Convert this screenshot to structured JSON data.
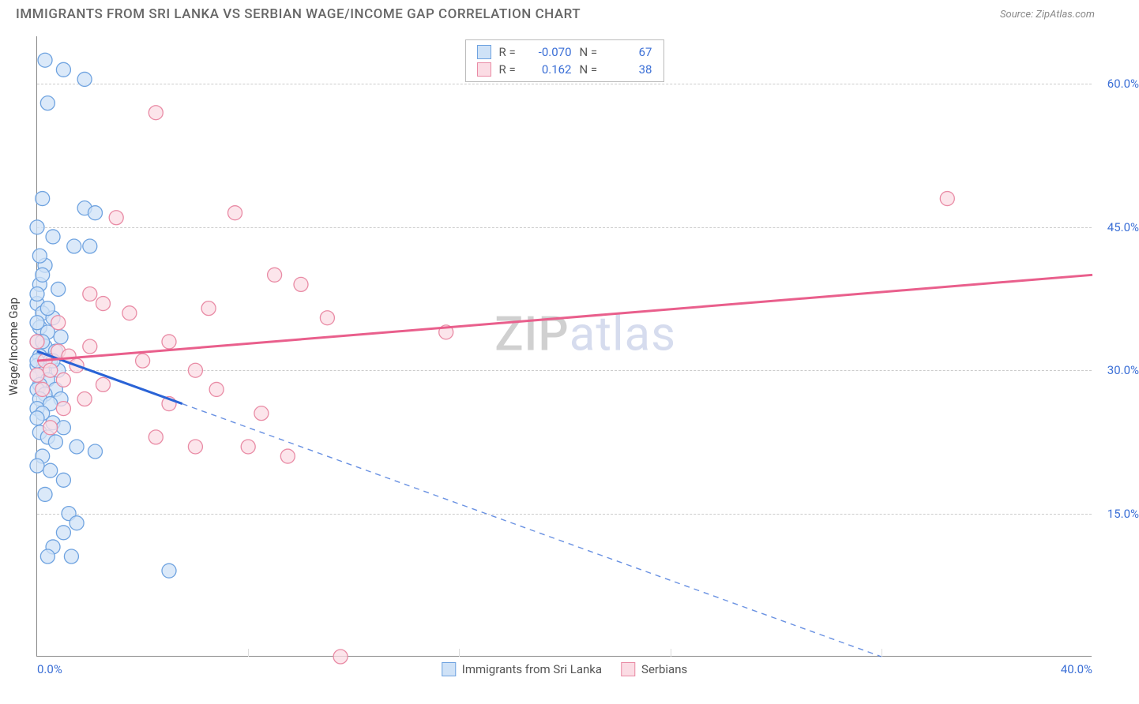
{
  "header": {
    "title": "IMMIGRANTS FROM SRI LANKA VS SERBIAN WAGE/INCOME GAP CORRELATION CHART",
    "source_label": "Source: ZipAtlas.com"
  },
  "watermark": {
    "part1": "ZIP",
    "part2": "atlas"
  },
  "chart": {
    "type": "scatter",
    "background_color": "#ffffff",
    "grid_color": "#cccccc",
    "axis_color": "#888888",
    "x_axis": {
      "min": 0.0,
      "max": 40.0,
      "ticks": [
        0.0,
        40.0
      ],
      "tick_labels": [
        "0.0%",
        "40.0%"
      ],
      "minor_ticks": [
        8.0,
        16.0,
        24.0,
        32.0
      ]
    },
    "y_axis": {
      "title": "Wage/Income Gap",
      "min": 0.0,
      "max": 65.0,
      "ticks": [
        15.0,
        30.0,
        45.0,
        60.0
      ],
      "tick_labels": [
        "15.0%",
        "30.0%",
        "45.0%",
        "60.0%"
      ]
    },
    "tick_label_color": "#3b6fd6",
    "tick_label_fontsize": 15,
    "series": [
      {
        "name": "Immigrants from Sri Lanka",
        "marker_fill": "#cfe2f7",
        "marker_stroke": "#6fa3e0",
        "marker_radius": 9,
        "line_color": "#2a63d6",
        "R": "-0.070",
        "N": "67",
        "regression": {
          "x1": 0.0,
          "y1": 32.0,
          "x2_solid": 5.5,
          "y2_solid": 26.5,
          "x2_dash": 32.0,
          "y2_dash": 0.0
        },
        "points": [
          [
            0.3,
            62.5
          ],
          [
            1.0,
            61.5
          ],
          [
            1.8,
            60.5
          ],
          [
            0.4,
            58.0
          ],
          [
            0.2,
            48.0
          ],
          [
            1.8,
            47.0
          ],
          [
            2.2,
            46.5
          ],
          [
            0.6,
            44.0
          ],
          [
            1.4,
            43.0
          ],
          [
            2.0,
            43.0
          ],
          [
            0.3,
            41.0
          ],
          [
            0.1,
            39.0
          ],
          [
            0.8,
            38.5
          ],
          [
            0.0,
            37.0
          ],
          [
            0.2,
            36.0
          ],
          [
            0.6,
            35.5
          ],
          [
            0.1,
            34.5
          ],
          [
            0.4,
            34.0
          ],
          [
            0.9,
            33.5
          ],
          [
            0.0,
            33.0
          ],
          [
            0.3,
            32.5
          ],
          [
            0.7,
            32.0
          ],
          [
            0.1,
            31.5
          ],
          [
            0.5,
            31.0
          ],
          [
            0.0,
            30.5
          ],
          [
            0.2,
            30.0
          ],
          [
            0.8,
            30.0
          ],
          [
            0.0,
            29.5
          ],
          [
            0.4,
            29.0
          ],
          [
            0.1,
            28.5
          ],
          [
            0.7,
            28.0
          ],
          [
            0.0,
            28.0
          ],
          [
            0.3,
            27.5
          ],
          [
            0.9,
            27.0
          ],
          [
            0.1,
            27.0
          ],
          [
            0.5,
            26.5
          ],
          [
            0.0,
            26.0
          ],
          [
            0.2,
            25.5
          ],
          [
            0.0,
            25.0
          ],
          [
            0.6,
            24.5
          ],
          [
            1.0,
            24.0
          ],
          [
            0.1,
            23.5
          ],
          [
            0.4,
            23.0
          ],
          [
            0.7,
            22.5
          ],
          [
            1.5,
            22.0
          ],
          [
            2.2,
            21.5
          ],
          [
            0.2,
            21.0
          ],
          [
            0.0,
            20.0
          ],
          [
            0.5,
            19.5
          ],
          [
            1.0,
            18.5
          ],
          [
            0.3,
            17.0
          ],
          [
            1.2,
            15.0
          ],
          [
            1.5,
            14.0
          ],
          [
            1.0,
            13.0
          ],
          [
            0.6,
            11.5
          ],
          [
            1.3,
            10.5
          ],
          [
            0.4,
            10.5
          ],
          [
            5.0,
            9.0
          ],
          [
            0.2,
            33.0
          ],
          [
            0.0,
            31.0
          ],
          [
            0.6,
            31.0
          ],
          [
            0.0,
            35.0
          ],
          [
            0.4,
            36.5
          ],
          [
            0.0,
            38.0
          ],
          [
            0.2,
            40.0
          ],
          [
            0.0,
            45.0
          ],
          [
            0.1,
            42.0
          ]
        ]
      },
      {
        "name": "Serbians",
        "marker_fill": "#fbdce4",
        "marker_stroke": "#e98ba5",
        "line_color": "#e95f8c",
        "marker_radius": 9,
        "R": "0.162",
        "N": "38",
        "regression": {
          "x1": 0.0,
          "y1": 31.0,
          "x2_solid": 40.0,
          "y2_solid": 40.0
        },
        "points": [
          [
            4.5,
            57.0
          ],
          [
            34.5,
            48.0
          ],
          [
            7.5,
            46.5
          ],
          [
            3.0,
            46.0
          ],
          [
            9.0,
            40.0
          ],
          [
            10.0,
            39.0
          ],
          [
            2.5,
            37.0
          ],
          [
            6.5,
            36.5
          ],
          [
            3.5,
            36.0
          ],
          [
            11.0,
            35.5
          ],
          [
            15.5,
            34.0
          ],
          [
            5.0,
            33.0
          ],
          [
            2.0,
            32.5
          ],
          [
            0.8,
            32.0
          ],
          [
            1.2,
            31.5
          ],
          [
            0.3,
            31.0
          ],
          [
            4.0,
            31.0
          ],
          [
            1.5,
            30.5
          ],
          [
            6.0,
            30.0
          ],
          [
            0.5,
            30.0
          ],
          [
            0.0,
            29.5
          ],
          [
            1.0,
            29.0
          ],
          [
            2.5,
            28.5
          ],
          [
            6.8,
            28.0
          ],
          [
            0.2,
            28.0
          ],
          [
            1.8,
            27.0
          ],
          [
            5.0,
            26.5
          ],
          [
            8.5,
            25.5
          ],
          [
            4.5,
            23.0
          ],
          [
            8.0,
            22.0
          ],
          [
            6.0,
            22.0
          ],
          [
            9.5,
            21.0
          ],
          [
            0.5,
            24.0
          ],
          [
            1.0,
            26.0
          ],
          [
            0.0,
            33.0
          ],
          [
            11.5,
            0.0
          ],
          [
            0.8,
            35.0
          ],
          [
            2.0,
            38.0
          ]
        ]
      }
    ],
    "legend_top": {
      "R_label": "R =",
      "N_label": "N ="
    },
    "legend_bottom": [
      {
        "label": "Immigrants from Sri Lanka",
        "fill": "#cfe2f7",
        "stroke": "#6fa3e0"
      },
      {
        "label": "Serbians",
        "fill": "#fbdce4",
        "stroke": "#e98ba5"
      }
    ]
  }
}
